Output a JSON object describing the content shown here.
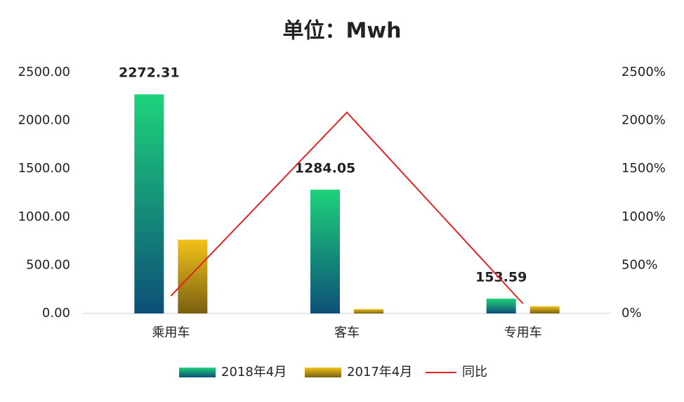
{
  "chart_data": {
    "type": "bar",
    "title": "单位：Mwh",
    "categories": [
      "乘用车",
      "客车",
      "专用车"
    ],
    "series": [
      {
        "name": "2018年4月",
        "color": "#1ed27a",
        "values": [
          2272.31,
          1284.05,
          153.59
        ],
        "data_labels": true
      },
      {
        "name": "2017年4月",
        "color": "#f2c21a",
        "values": [
          765,
          45,
          75
        ]
      },
      {
        "name": "同比",
        "color": "#e02424",
        "type": "line",
        "axis": "y2",
        "values": [
          182,
          2085,
          102
        ]
      }
    ],
    "ylim": [
      0,
      2500
    ],
    "yticks": [
      {
        "value": 0,
        "label": "0.00"
      },
      {
        "value": 500,
        "label": "500.00"
      },
      {
        "value": 1000,
        "label": "1000.00"
      },
      {
        "value": 1500,
        "label": "1500.00"
      },
      {
        "value": 2000,
        "label": "2000.00"
      },
      {
        "value": 2500,
        "label": "2500.00"
      }
    ],
    "y2lim": [
      0,
      2500
    ],
    "y2ticks": [
      {
        "value": 0,
        "label": "0%"
      },
      {
        "value": 500,
        "label": "500%"
      },
      {
        "value": 1000,
        "label": "1000%"
      },
      {
        "value": 1500,
        "label": "1500%"
      },
      {
        "value": 2000,
        "label": "2000%"
      },
      {
        "value": 2500,
        "label": "2500%"
      }
    ],
    "legend": "bottom"
  }
}
